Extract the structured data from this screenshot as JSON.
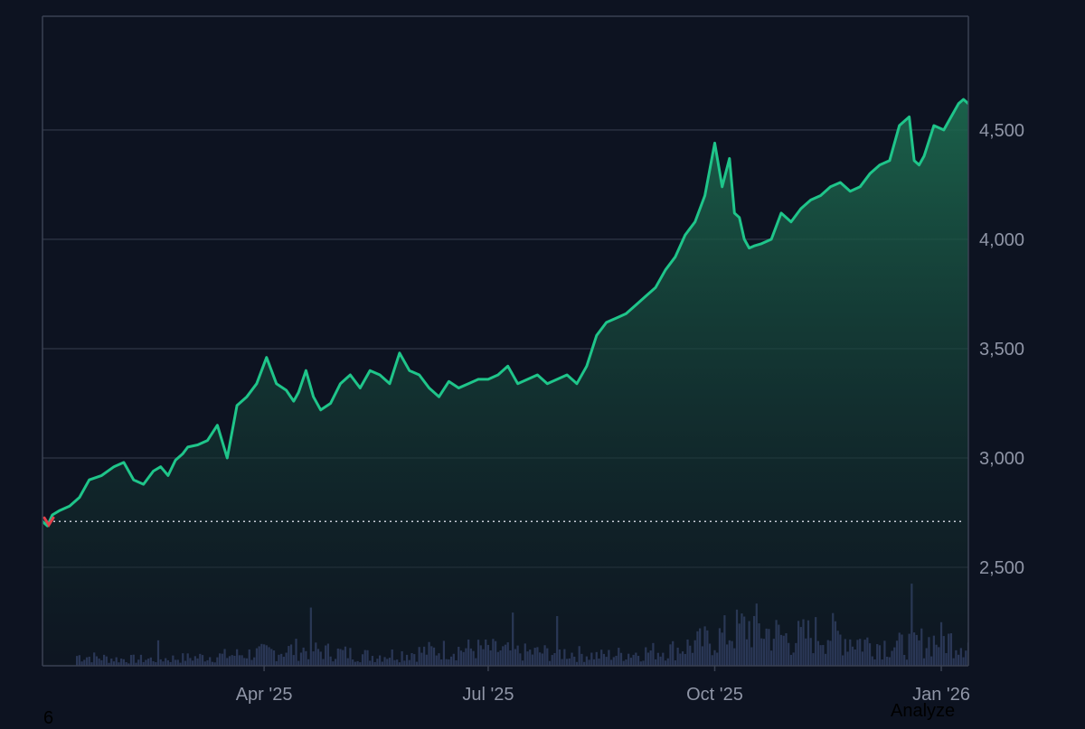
{
  "colors": {
    "background": "#0d1321",
    "grid": "#2a3140",
    "frame": "#3a4152",
    "line": "#1fc58a",
    "area_top": "#1c6a4f",
    "area_bottom": "#0f1a22",
    "volume": "#3d4a7a",
    "baseline": "#c8ccd6",
    "down_marker": "#e0404a",
    "tick_text": "#8f95a6"
  },
  "chart_data": {
    "type": "area",
    "x_tick_labels": [
      "Apr '25",
      "Jul '25",
      "Oct '25",
      "Jan '26"
    ],
    "x_tick_dates": [
      "2025-04-01",
      "2025-07-01",
      "2025-10-01",
      "2026-01-01"
    ],
    "y_tick_labels": [
      "4,500",
      "4,000",
      "3,500",
      "3,000",
      "2,500"
    ],
    "y_ticks": [
      4500,
      4000,
      3500,
      3000,
      2500
    ],
    "ylim": [
      2050,
      5020
    ],
    "xlim": [
      "2025-01-01",
      "2026-01-12"
    ],
    "baseline_value": 2710,
    "grid": true,
    "series": [
      {
        "x": [
          "2025-01-01",
          "2025-01-03",
          "2025-01-05",
          "2025-01-08",
          "2025-01-12",
          "2025-01-16",
          "2025-01-20",
          "2025-01-25",
          "2025-01-30",
          "2025-02-03",
          "2025-02-07",
          "2025-02-11",
          "2025-02-15",
          "2025-02-18",
          "2025-02-21",
          "2025-02-24",
          "2025-02-27",
          "2025-03-01",
          "2025-03-05",
          "2025-03-09",
          "2025-03-13",
          "2025-03-17",
          "2025-03-21",
          "2025-03-25",
          "2025-03-29",
          "2025-04-02",
          "2025-04-06",
          "2025-04-10",
          "2025-04-13",
          "2025-04-15",
          "2025-04-18",
          "2025-04-21",
          "2025-04-24",
          "2025-04-28",
          "2025-05-02",
          "2025-05-06",
          "2025-05-10",
          "2025-05-14",
          "2025-05-18",
          "2025-05-22",
          "2025-05-26",
          "2025-05-30",
          "2025-06-03",
          "2025-06-07",
          "2025-06-11",
          "2025-06-15",
          "2025-06-19",
          "2025-06-23",
          "2025-06-27",
          "2025-07-01",
          "2025-07-05",
          "2025-07-09",
          "2025-07-13",
          "2025-07-17",
          "2025-07-21",
          "2025-07-25",
          "2025-07-29",
          "2025-08-02",
          "2025-08-06",
          "2025-08-10",
          "2025-08-14",
          "2025-08-18",
          "2025-08-22",
          "2025-08-26",
          "2025-08-30",
          "2025-09-03",
          "2025-09-07",
          "2025-09-11",
          "2025-09-15",
          "2025-09-19",
          "2025-09-23",
          "2025-09-27",
          "2025-10-01",
          "2025-10-04",
          "2025-10-07",
          "2025-10-09",
          "2025-10-11",
          "2025-10-13",
          "2025-10-15",
          "2025-10-17",
          "2025-10-20",
          "2025-10-24",
          "2025-10-28",
          "2025-11-01",
          "2025-11-05",
          "2025-11-09",
          "2025-11-13",
          "2025-11-17",
          "2025-11-21",
          "2025-11-25",
          "2025-11-29",
          "2025-12-03",
          "2025-12-07",
          "2025-12-11",
          "2025-12-15",
          "2025-12-19",
          "2025-12-21",
          "2025-12-23",
          "2025-12-25",
          "2025-12-29",
          "2026-01-02",
          "2026-01-05",
          "2026-01-08",
          "2026-01-10",
          "2026-01-12"
        ],
        "y": [
          2710,
          2690,
          2740,
          2760,
          2780,
          2820,
          2900,
          2920,
          2960,
          2980,
          2900,
          2880,
          2940,
          2960,
          2920,
          2990,
          3020,
          3050,
          3060,
          3080,
          3150,
          3000,
          3240,
          3280,
          3340,
          3460,
          3340,
          3310,
          3260,
          3300,
          3400,
          3280,
          3220,
          3250,
          3340,
          3380,
          3320,
          3400,
          3380,
          3340,
          3480,
          3400,
          3380,
          3320,
          3280,
          3350,
          3320,
          3340,
          3360,
          3360,
          3380,
          3420,
          3340,
          3360,
          3380,
          3340,
          3360,
          3380,
          3340,
          3420,
          3560,
          3620,
          3640,
          3660,
          3700,
          3740,
          3780,
          3860,
          3920,
          4020,
          4080,
          4200,
          4440,
          4240,
          4370,
          4120,
          4100,
          4000,
          3960,
          3970,
          3980,
          4000,
          4120,
          4080,
          4140,
          4180,
          4200,
          4240,
          4260,
          4220,
          4240,
          4300,
          4340,
          4360,
          4520,
          4560,
          4360,
          4340,
          4380,
          4520,
          4500,
          4560,
          4620,
          4640,
          4620
        ]
      }
    ],
    "volume": {
      "x": [
        "2025-01-15",
        "2025-02-01",
        "2025-02-15",
        "2025-03-01",
        "2025-03-15",
        "2025-04-01",
        "2025-04-15",
        "2025-05-01",
        "2025-05-15",
        "2025-06-01",
        "2025-06-15",
        "2025-07-01",
        "2025-07-15",
        "2025-08-01",
        "2025-08-15",
        "2025-09-01",
        "2025-09-15",
        "2025-10-01",
        "2025-10-08",
        "2025-10-15",
        "2025-11-01",
        "2025-11-15",
        "2025-12-01",
        "2025-12-15",
        "2026-01-01",
        "2026-01-10"
      ],
      "y": [
        1.5,
        1,
        1,
        1.2,
        1.5,
        2,
        2.5,
        2,
        1.5,
        2,
        2.5,
        2.5,
        2,
        2,
        1.5,
        2,
        2.5,
        4,
        5,
        6,
        4,
        5,
        3.5,
        3,
        4,
        3.5
      ]
    }
  },
  "footer": {
    "left_text": "6",
    "right_text": "Analyze"
  }
}
